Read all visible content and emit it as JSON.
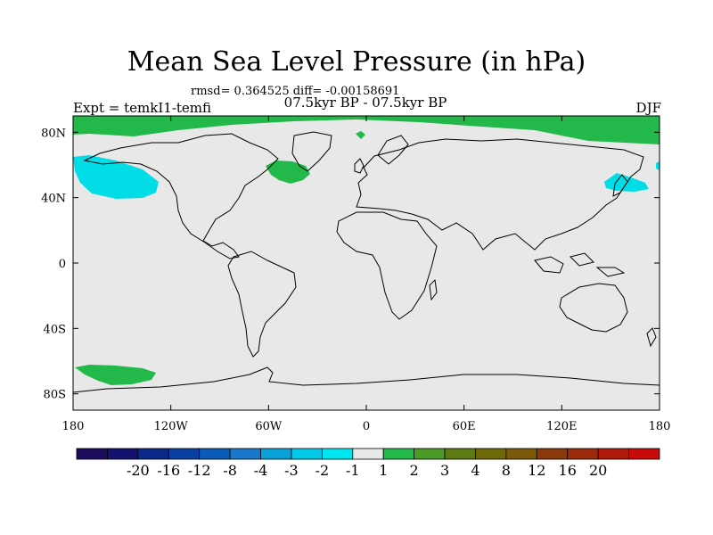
{
  "title": "Mean Sea Level Pressure (in hPa)",
  "stats": "rmsd= 0.364525 diff= -0.00158691",
  "subtitle": "07.5kyr BP - 07.5kyr BP",
  "experiment": "Expt = temkI1-temfi",
  "season": "DJF",
  "colors": {
    "background": "#e8e8e8",
    "positive_anomaly": "#22b84a",
    "negative_anomaly": "#00dde6",
    "coastline": "#000000"
  },
  "axes": {
    "x_ticks": [
      "180",
      "120W",
      "60W",
      "0",
      "60E",
      "120E",
      "180"
    ],
    "y_ticks": [
      "80N",
      "40N",
      "0",
      "40S",
      "80S"
    ]
  },
  "colorbar": {
    "colors": [
      "#1c0a5c",
      "#14126e",
      "#0a2a8a",
      "#0a3fa2",
      "#0a5ab8",
      "#1a78cc",
      "#0aa0d8",
      "#00c8e6",
      "#00e6ee",
      "#e8e8e8",
      "#22b84a",
      "#4a9a2a",
      "#5e7a14",
      "#6e6a0a",
      "#7a5a0a",
      "#8a3a0a",
      "#9a2a0a",
      "#b01a0a",
      "#c80a0a"
    ],
    "labels": [
      "-20",
      "-16",
      "-12",
      "-8",
      "-4",
      "-3",
      "-2",
      "-1",
      "1",
      "2",
      "3",
      "4",
      "8",
      "12",
      "16",
      "20"
    ]
  }
}
